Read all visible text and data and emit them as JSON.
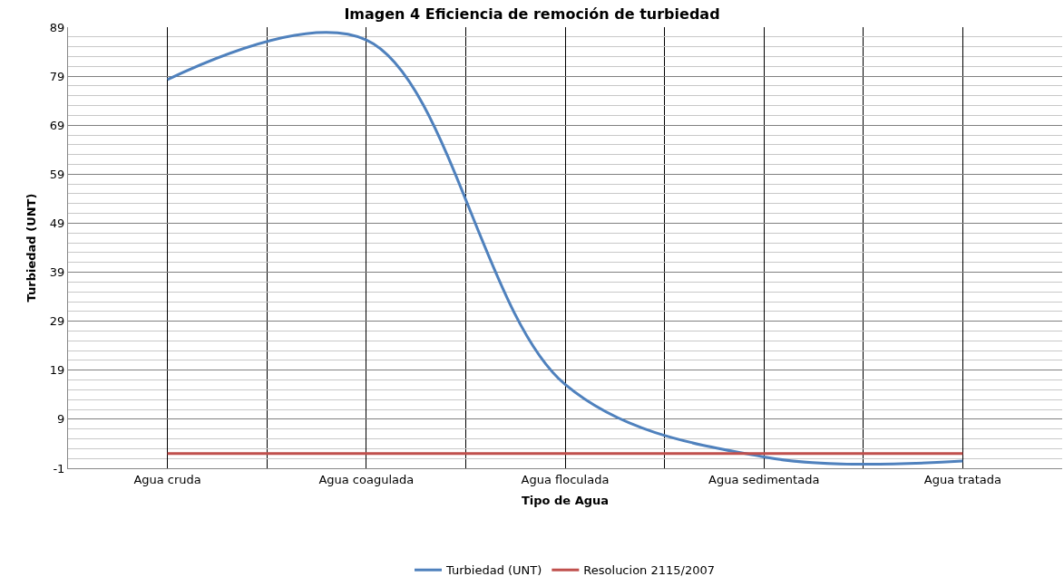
{
  "chart_data": {
    "type": "line",
    "title": "Imagen 4 Eficiencia de remoción de turbiedad",
    "xlabel": "Tipo de Agua",
    "ylabel": "Turbiedad (UNT)",
    "categories": [
      "Agua cruda",
      "Agua coagulada",
      "Agua floculada",
      "Agua sedimentada",
      "Agua tratada"
    ],
    "series": [
      {
        "name": "Turbiedad (UNT)",
        "color": "#4f81bd",
        "values": [
          78.3,
          86.4,
          16.1,
          1.3,
          0.5
        ]
      },
      {
        "name": "Resolucion 2115/2007",
        "color": "#c0504d",
        "values": [
          2,
          2,
          2,
          2,
          2
        ]
      }
    ],
    "ylim": [
      -1,
      89
    ],
    "yticks": [
      -1,
      9,
      19,
      29,
      39,
      49,
      59,
      69,
      79,
      89
    ],
    "grid": true,
    "legend": "bottom",
    "marker": "none",
    "line_style": "solid"
  }
}
